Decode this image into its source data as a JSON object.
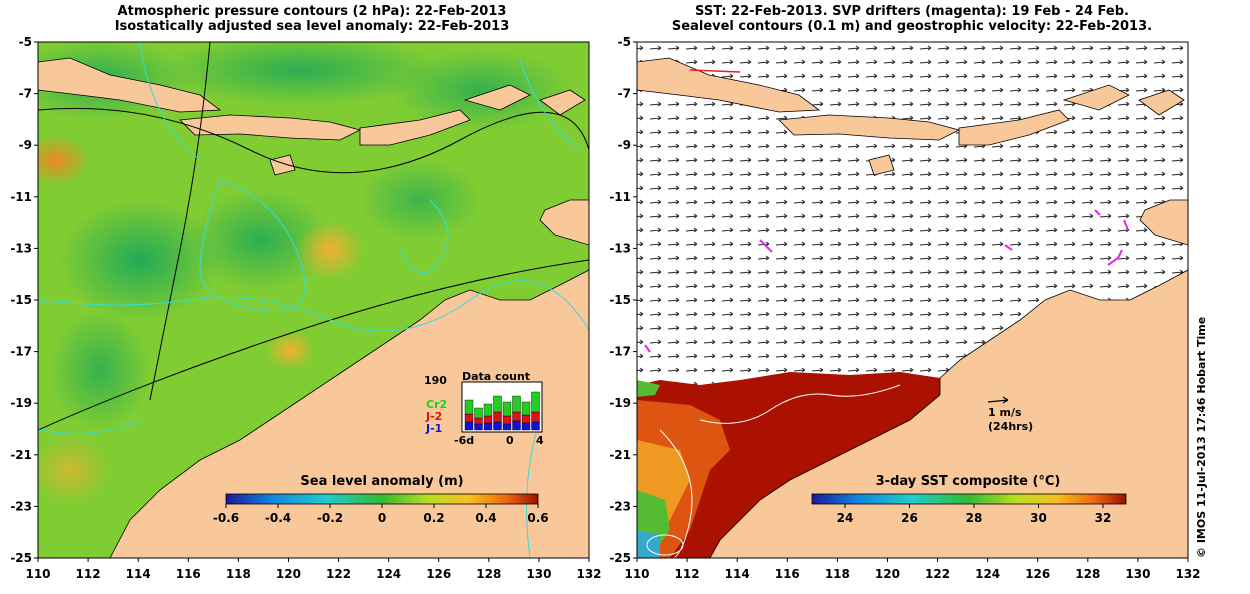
{
  "left_panel": {
    "title_line1": "Atmospheric pressure contours (2 hPa): 22-Feb-2013",
    "title_line2": "Isostatically adjusted sea level anomaly: 22-Feb-2013",
    "x_ticks": [
      "110",
      "112",
      "114",
      "116",
      "118",
      "120",
      "122",
      "124",
      "126",
      "128",
      "130",
      "132"
    ],
    "y_ticks": [
      "-5",
      "-7",
      "-9",
      "-11",
      "-13",
      "-15",
      "-17",
      "-19",
      "-21",
      "-23",
      "-25"
    ],
    "colorbar": {
      "title": "Sea level anomaly (m)",
      "ticks": [
        "-0.6",
        "-0.4",
        "-0.2",
        "0",
        "0.2",
        "0.4",
        "0.6"
      ]
    },
    "inset": {
      "title": "Data count",
      "max_label": "190",
      "x_ticks": [
        "-6d",
        "0",
        "4"
      ],
      "series": [
        {
          "name": "Cr2",
          "color": "#22cc22"
        },
        {
          "name": "J-2",
          "color": "#dd1111"
        },
        {
          "name": "J-1",
          "color": "#1111dd"
        }
      ]
    }
  },
  "right_panel": {
    "title_line1": "SST: 22-Feb-2013. SVP drifters (magenta): 19 Feb - 24 Feb.",
    "title_line2": "Sealevel contours (0.1 m) and geostrophic velocity: 22-Feb-2013.",
    "x_ticks": [
      "110",
      "112",
      "114",
      "116",
      "118",
      "120",
      "122",
      "124",
      "126",
      "128",
      "130",
      "132"
    ],
    "y_ticks": [
      "-5",
      "-7",
      "-9",
      "-11",
      "-13",
      "-15",
      "-17",
      "-19",
      "-21",
      "-23",
      "-25"
    ],
    "colorbar": {
      "title": "3-day SST composite (°C)",
      "ticks": [
        "24",
        "26",
        "28",
        "30",
        "32"
      ]
    },
    "scale_arrow": {
      "line1": "1 m/s",
      "line2": "(24hrs)"
    }
  },
  "credit": "© IMOS 11-Jul-2013 17:46 Hobart Time",
  "colors": {
    "land": "#f8c89a",
    "ocean_green": "#44bb33",
    "sst_red": "#aa1100"
  }
}
